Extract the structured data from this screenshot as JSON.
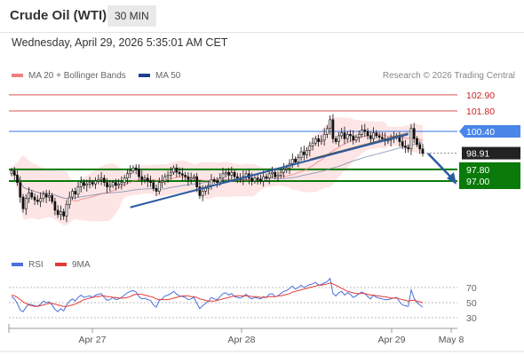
{
  "header": {
    "title": "Crude Oil (WTI)",
    "timeframe": "30 MIN"
  },
  "datetime": "Wednesday, April 29, 2026 5:35:01 AM CET",
  "legend": {
    "ma20_label": "MA 20 + Bollinger Bands",
    "ma50_label": "MA 50",
    "credit": "Research © 2026 Trading Central"
  },
  "rsi_legend": {
    "rsi_label": "RSI",
    "ma_label": "9MA"
  },
  "colors": {
    "resistance": "#e57373",
    "pivot": "#4a86e8",
    "support": "#0a7a0a",
    "current": "#222222",
    "ma20": "#f08080",
    "ma50": "#1f3f8f",
    "band_fill": "#fde2e2",
    "up": "#ffffff",
    "down": "#111111",
    "rsi": "#4a6fdc",
    "rsi_ma": "#e53935",
    "arrow": "#2c5aa0"
  },
  "chart_data": [
    {
      "type": "candlestick",
      "x_tick_labels": [
        "Apr 27",
        "Apr 28",
        "Apr 29",
        "May 8"
      ],
      "price_levels": [
        {
          "value": 102.9,
          "label": "102.90",
          "kind": "resistance"
        },
        {
          "value": 101.8,
          "label": "101.80",
          "kind": "resistance"
        },
        {
          "value": 100.4,
          "label": "100.40",
          "kind": "pivot"
        },
        {
          "value": 98.91,
          "label": "98.91",
          "kind": "current"
        },
        {
          "value": 97.8,
          "label": "97.80",
          "kind": "support"
        },
        {
          "value": 97.0,
          "label": "97.00",
          "kind": "support"
        }
      ],
      "series": [
        {
          "name": "MA 20 + Bollinger Bands",
          "color": "#f08080"
        },
        {
          "name": "MA 50",
          "color": "#1f3f8f"
        }
      ],
      "candles_close": [
        97.7,
        97.4,
        96.9,
        95.9,
        95.1,
        95.8,
        96.2,
        95.9,
        95.7,
        95.6,
        95.8,
        96.1,
        95.9,
        96.0,
        95.6,
        95.0,
        94.7,
        94.9,
        94.6,
        95.4,
        95.9,
        96.3,
        96.1,
        96.6,
        96.9,
        96.7,
        96.8,
        96.9,
        96.8,
        97.0,
        97.1,
        97.2,
        96.9,
        96.6,
        96.7,
        96.9,
        96.7,
        96.8,
        96.9,
        97.2,
        97.5,
        97.7,
        97.9,
        97.8,
        97.3,
        97.1,
        97.2,
        97.0,
        96.9,
        96.5,
        96.3,
        96.9,
        97.0,
        97.3,
        97.4,
        97.6,
        97.9,
        97.6,
        97.5,
        97.4,
        97.3,
        97.1,
        97.2,
        97.3,
        96.6,
        96.0,
        96.3,
        96.5,
        96.7,
        97.1,
        97.0,
        96.9,
        97.2,
        97.5,
        97.6,
        97.4,
        97.6,
        97.3,
        97.2,
        97.1,
        97.3,
        97.5,
        97.2,
        97.0,
        97.2,
        97.1,
        97.0,
        97.3,
        97.2,
        97.5,
        97.6,
        97.3,
        97.4,
        97.6,
        97.8,
        97.9,
        98.2,
        98.5,
        98.3,
        98.6,
        99.0,
        98.8,
        99.1,
        99.4,
        99.6,
        99.9,
        99.7,
        99.8,
        100.2,
        100.6,
        101.2,
        99.9,
        99.7,
        100.1,
        100.3,
        99.9,
        100.2,
        100.1,
        99.8,
        100.0,
        100.2,
        100.5,
        100.4,
        100.1,
        99.9,
        100.3,
        100.1,
        100.0,
        99.9,
        99.8,
        99.8,
        99.9,
        100.0,
        100.1,
        99.7,
        99.4,
        99.3,
        99.2,
        100.6,
        99.9,
        99.5,
        99.2,
        98.9
      ]
    },
    {
      "type": "line",
      "title": "RSI",
      "ylim": [
        20,
        80
      ],
      "y_ticks": [
        70,
        50,
        30
      ],
      "series": [
        {
          "name": "RSI",
          "values": [
            58,
            55,
            49,
            40,
            38,
            44,
            48,
            47,
            46,
            45,
            48,
            52,
            50,
            51,
            47,
            41,
            38,
            42,
            39,
            47,
            52,
            55,
            52,
            57,
            60,
            57,
            58,
            59,
            57,
            60,
            61,
            62,
            57,
            53,
            54,
            57,
            54,
            55,
            57,
            60,
            63,
            65,
            66,
            64,
            58,
            55,
            56,
            54,
            53,
            47,
            44,
            53,
            55,
            59,
            60,
            62,
            65,
            61,
            59,
            58,
            57,
            54,
            55,
            57,
            49,
            42,
            46,
            49,
            52,
            57,
            55,
            54,
            58,
            62,
            63,
            60,
            62,
            58,
            57,
            56,
            58,
            61,
            57,
            55,
            57,
            56,
            55,
            58,
            57,
            61,
            62,
            58,
            59,
            62,
            65,
            66,
            69,
            72,
            68,
            70,
            73,
            70,
            72,
            74,
            75,
            77,
            73,
            74,
            76,
            78,
            82,
            62,
            59,
            63,
            65,
            60,
            63,
            61,
            57,
            59,
            62,
            64,
            62,
            58,
            55,
            60,
            57,
            56,
            55,
            54,
            54,
            55,
            56,
            57,
            51,
            47,
            46,
            45,
            67,
            56,
            50,
            47,
            44
          ]
        },
        {
          "name": "9MA",
          "values": [
            60,
            59,
            57,
            54,
            51,
            49,
            47,
            46,
            45,
            45,
            46,
            47,
            48,
            49,
            49,
            48,
            47,
            46,
            45,
            45,
            46,
            47,
            48,
            50,
            52,
            54,
            55,
            56,
            57,
            58,
            58,
            59,
            59,
            58,
            58,
            57,
            57,
            56,
            56,
            56,
            57,
            58,
            60,
            61,
            61,
            61,
            60,
            59,
            58,
            57,
            55,
            54,
            54,
            54,
            54,
            55,
            56,
            57,
            58,
            59,
            59,
            59,
            58,
            58,
            57,
            55,
            54,
            53,
            52,
            52,
            52,
            53,
            54,
            55,
            56,
            57,
            58,
            59,
            59,
            59,
            59,
            59,
            59,
            58,
            58,
            58,
            57,
            57,
            57,
            58,
            58,
            58,
            59,
            59,
            60,
            61,
            62,
            64,
            65,
            66,
            67,
            68,
            69,
            70,
            71,
            72,
            73,
            73,
            74,
            75,
            76,
            75,
            73,
            71,
            69,
            67,
            65,
            64,
            63,
            62,
            62,
            62,
            62,
            61,
            60,
            60,
            59,
            59,
            58,
            58,
            57,
            56,
            56,
            56,
            55,
            54,
            53,
            52,
            53,
            53,
            52,
            51,
            50
          ]
        }
      ]
    }
  ]
}
